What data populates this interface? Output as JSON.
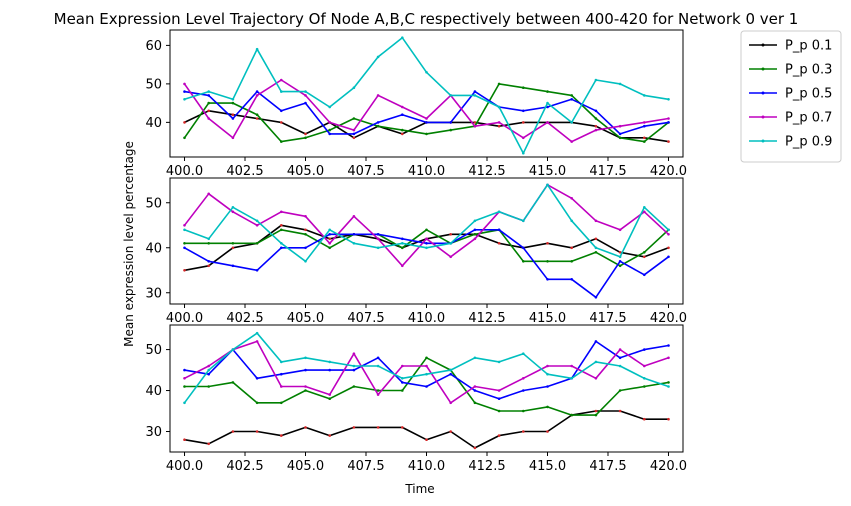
{
  "chart_data": {
    "type": "line",
    "title": "Mean Expression Level Trajectory Of Node A,B,C respectively between 400-420 for Network 0 ver 1",
    "xlabel": "Time",
    "ylabel": "Mean expression level percentage",
    "legend_position": "outside-top-right",
    "x": [
      400,
      401,
      402,
      403,
      404,
      405,
      406,
      407,
      408,
      409,
      410,
      411,
      412,
      413,
      414,
      415,
      416,
      417,
      418,
      419,
      420
    ],
    "xticks": [
      400.0,
      402.5,
      405.0,
      407.5,
      410.0,
      412.5,
      415.0,
      417.5,
      420.0
    ],
    "xtick_labels": [
      "400.0",
      "402.5",
      "405.0",
      "407.5",
      "410.0",
      "412.5",
      "415.0",
      "417.5",
      "420.0"
    ],
    "xlim": [
      399.4,
      420.6
    ],
    "series_meta": [
      {
        "name": "P_p 0.1",
        "color": "#000000"
      },
      {
        "name": "P_p 0.3",
        "color": "#008000"
      },
      {
        "name": "P_p 0.5",
        "color": "#0000ff"
      },
      {
        "name": "P_p 0.7",
        "color": "#bf00bf"
      },
      {
        "name": "P_p 0.9",
        "color": "#00bfbf"
      }
    ],
    "panels": [
      {
        "node": "A",
        "ylim": [
          31,
          64
        ],
        "yticks": [
          40,
          50,
          60
        ],
        "series": [
          {
            "name": "P_p 0.1",
            "values": [
              40,
              43,
              42,
              41,
              40,
              37,
              40,
              36,
              39,
              37,
              40,
              40,
              40,
              39,
              40,
              40,
              40,
              39,
              36,
              36,
              35
            ]
          },
          {
            "name": "P_p 0.3",
            "values": [
              36,
              45,
              45,
              42,
              35,
              36,
              38,
              41,
              39,
              38,
              37,
              38,
              39,
              50,
              49,
              48,
              47,
              41,
              36,
              35,
              40
            ]
          },
          {
            "name": "P_p 0.5",
            "values": [
              48,
              47,
              41,
              48,
              43,
              45,
              37,
              37,
              40,
              42,
              40,
              40,
              48,
              44,
              43,
              44,
              46,
              43,
              37,
              39,
              40
            ]
          },
          {
            "name": "P_p 0.7",
            "values": [
              50,
              41,
              36,
              47,
              51,
              47,
              40,
              38,
              47,
              44,
              41,
              47,
              39,
              40,
              36,
              40,
              35,
              38,
              39,
              40,
              41
            ]
          },
          {
            "name": "P_p 0.9",
            "values": [
              46,
              48,
              46,
              59,
              48,
              48,
              44,
              49,
              57,
              62,
              53,
              47,
              47,
              44,
              32,
              45,
              40,
              51,
              50,
              47,
              46
            ]
          }
        ]
      },
      {
        "node": "B",
        "ylim": [
          27.5,
          55.5
        ],
        "yticks": [
          30,
          40,
          50
        ],
        "series": [
          {
            "name": "P_p 0.1",
            "values": [
              35,
              36,
              40,
              41,
              45,
              44,
              42,
              43,
              42,
              40,
              42,
              43,
              43,
              41,
              40,
              41,
              40,
              42,
              39,
              38,
              40
            ]
          },
          {
            "name": "P_p 0.3",
            "values": [
              41,
              41,
              41,
              41,
              44,
              43,
              40,
              43,
              43,
              40,
              44,
              41,
              43,
              44,
              37,
              37,
              37,
              39,
              36,
              39,
              44
            ]
          },
          {
            "name": "P_p 0.5",
            "values": [
              40,
              37,
              36,
              35,
              40,
              40,
              43,
              43,
              43,
              42,
              41,
              41,
              44,
              44,
              40,
              33,
              33,
              29,
              37,
              34,
              38
            ]
          },
          {
            "name": "P_p 0.7",
            "values": [
              45,
              52,
              48,
              45,
              48,
              47,
              41,
              47,
              42,
              36,
              42,
              38,
              42,
              48,
              46,
              54,
              51,
              46,
              44,
              48,
              43
            ]
          },
          {
            "name": "P_p 0.9",
            "values": [
              44,
              42,
              49,
              46,
              41,
              37,
              44,
              41,
              40,
              41,
              40,
              41,
              46,
              48,
              46,
              54,
              46,
              40,
              38,
              49,
              44
            ]
          }
        ]
      },
      {
        "node": "C",
        "ylim": [
          25,
          56
        ],
        "yticks": [
          30,
          40,
          50
        ],
        "series": [
          {
            "name": "P_p 0.1",
            "values": [
              28,
              27,
              30,
              30,
              29,
              31,
              29,
              31,
              31,
              31,
              28,
              30,
              26,
              29,
              30,
              30,
              34,
              35,
              35,
              33,
              33
            ]
          },
          {
            "name": "P_p 0.3",
            "values": [
              41,
              41,
              42,
              37,
              37,
              40,
              38,
              41,
              40,
              40,
              48,
              45,
              37,
              35,
              35,
              36,
              34,
              34,
              40,
              41,
              42
            ]
          },
          {
            "name": "P_p 0.5",
            "values": [
              45,
              44,
              50,
              43,
              44,
              45,
              45,
              45,
              48,
              42,
              41,
              44,
              40,
              38,
              40,
              41,
              43,
              52,
              48,
              50,
              51
            ]
          },
          {
            "name": "P_p 0.7",
            "values": [
              43,
              46,
              50,
              52,
              41,
              41,
              39,
              49,
              39,
              46,
              46,
              37,
              41,
              40,
              43,
              46,
              46,
              43,
              50,
              46,
              48
            ]
          },
          {
            "name": "P_p 0.9",
            "values": [
              37,
              45,
              50,
              54,
              47,
              48,
              47,
              46,
              46,
              43,
              44,
              45,
              48,
              47,
              49,
              44,
              43,
              47,
              46,
              43,
              41
            ]
          }
        ]
      }
    ]
  }
}
